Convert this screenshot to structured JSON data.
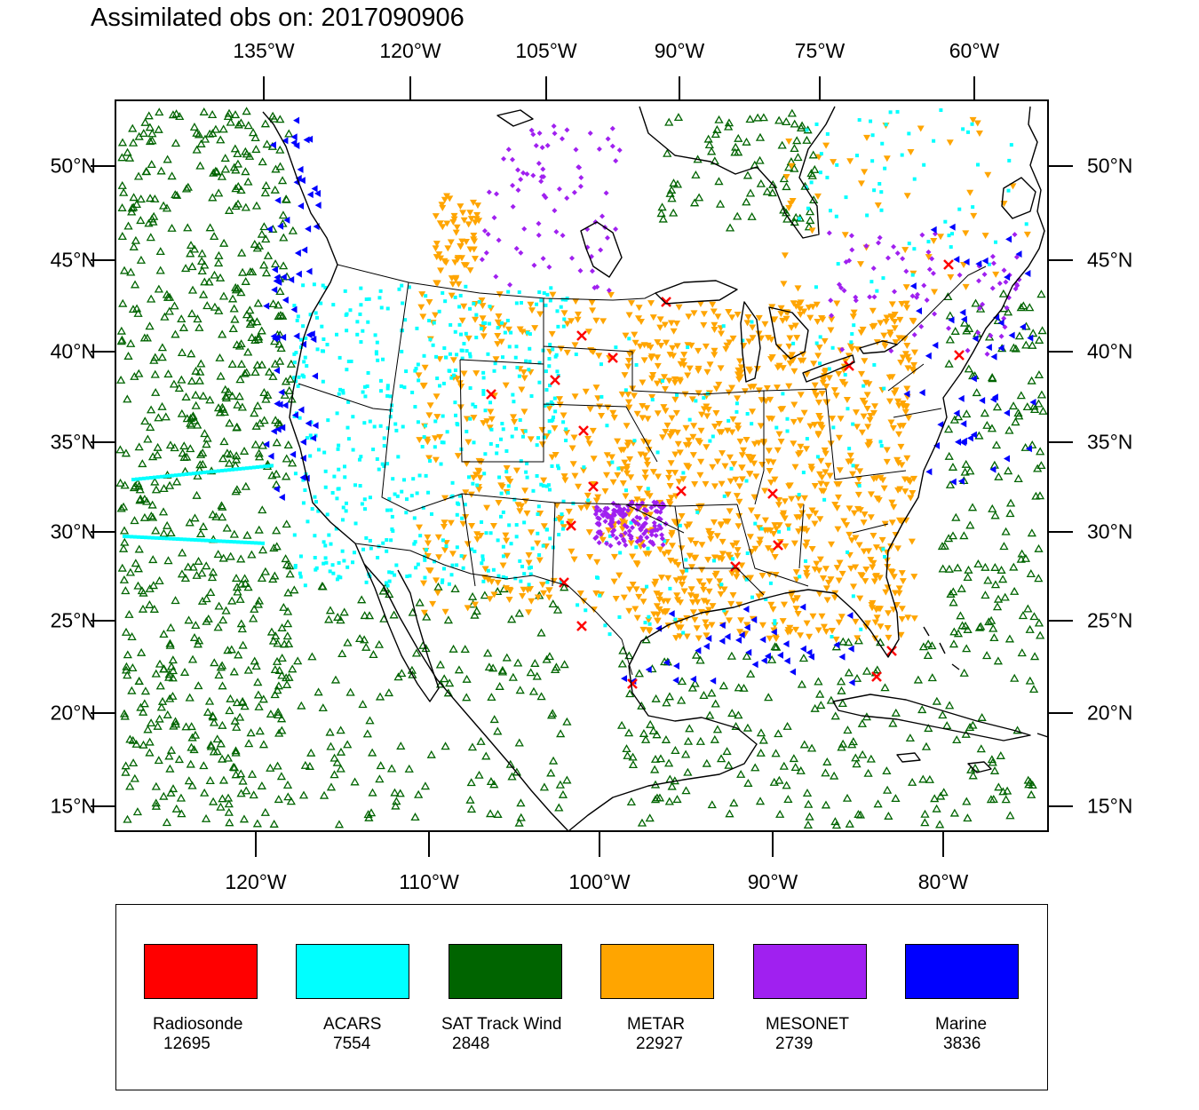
{
  "title": "Assimilated obs on: 2017090906",
  "map": {
    "top_lon_labels": [
      "135°W",
      "120°W",
      "105°W",
      "90°W",
      "75°W",
      "60°W"
    ],
    "bottom_lon_labels": [
      "120°W",
      "110°W",
      "100°W",
      "90°W",
      "80°W"
    ],
    "lat_labels": [
      "50°N",
      "45°N",
      "40°N",
      "35°N",
      "30°N",
      "25°N",
      "20°N",
      "15°N"
    ],
    "land_color": "#ffffff",
    "coast_color": "#000000"
  },
  "legend": [
    {
      "name": "Radiosonde",
      "count": "12695",
      "color": "#ff0000",
      "marker": "x"
    },
    {
      "name": "ACARS",
      "count": "7554",
      "color": "#00ffff",
      "marker": "square"
    },
    {
      "name": "SAT Track Wind",
      "count": "2848",
      "color": "#006400",
      "marker": "triangle-up"
    },
    {
      "name": "METAR",
      "count": "22927",
      "color": "#ffa500",
      "marker": "triangle-down"
    },
    {
      "name": "MESONET",
      "count": "2739",
      "color": "#a020f0",
      "marker": "diamond"
    },
    {
      "name": "Marine",
      "count": "3836",
      "color": "#0000ff",
      "marker": "triangle-left"
    }
  ]
}
